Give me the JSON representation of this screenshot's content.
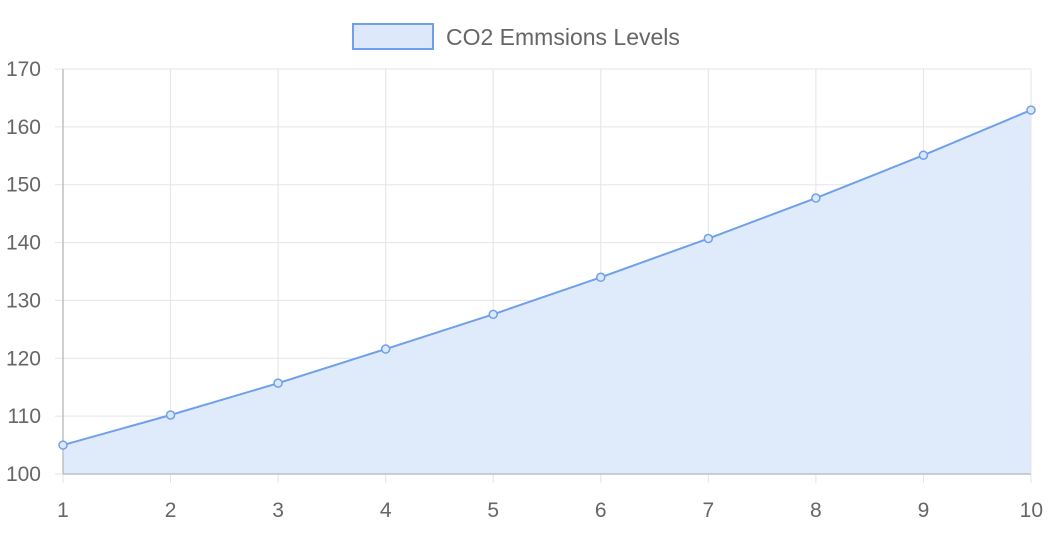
{
  "chart_data": {
    "type": "area",
    "x": [
      1,
      2,
      3,
      4,
      5,
      6,
      7,
      8,
      9,
      10
    ],
    "series": [
      {
        "name": "CO2 Emmsions Levels",
        "values": [
          105.0,
          110.2,
          115.7,
          121.6,
          127.6,
          134.0,
          140.7,
          147.7,
          155.1,
          162.9
        ],
        "line_color": "#6fa0ea",
        "fill_color": "#dde9fa",
        "point_color": "#6fa0ea"
      }
    ],
    "x_ticks": [
      "1",
      "2",
      "3",
      "4",
      "5",
      "6",
      "7",
      "8",
      "9",
      "10"
    ],
    "y_ticks": [
      "100",
      "110",
      "120",
      "130",
      "140",
      "150",
      "160",
      "170"
    ],
    "ylim": [
      100,
      170
    ],
    "xlim": [
      1,
      10
    ],
    "grid": true,
    "grid_color": "#e5e5e5",
    "axis_color": "#c0c0c0",
    "legend_position": "top",
    "title": "",
    "xlabel": "",
    "ylabel": ""
  }
}
